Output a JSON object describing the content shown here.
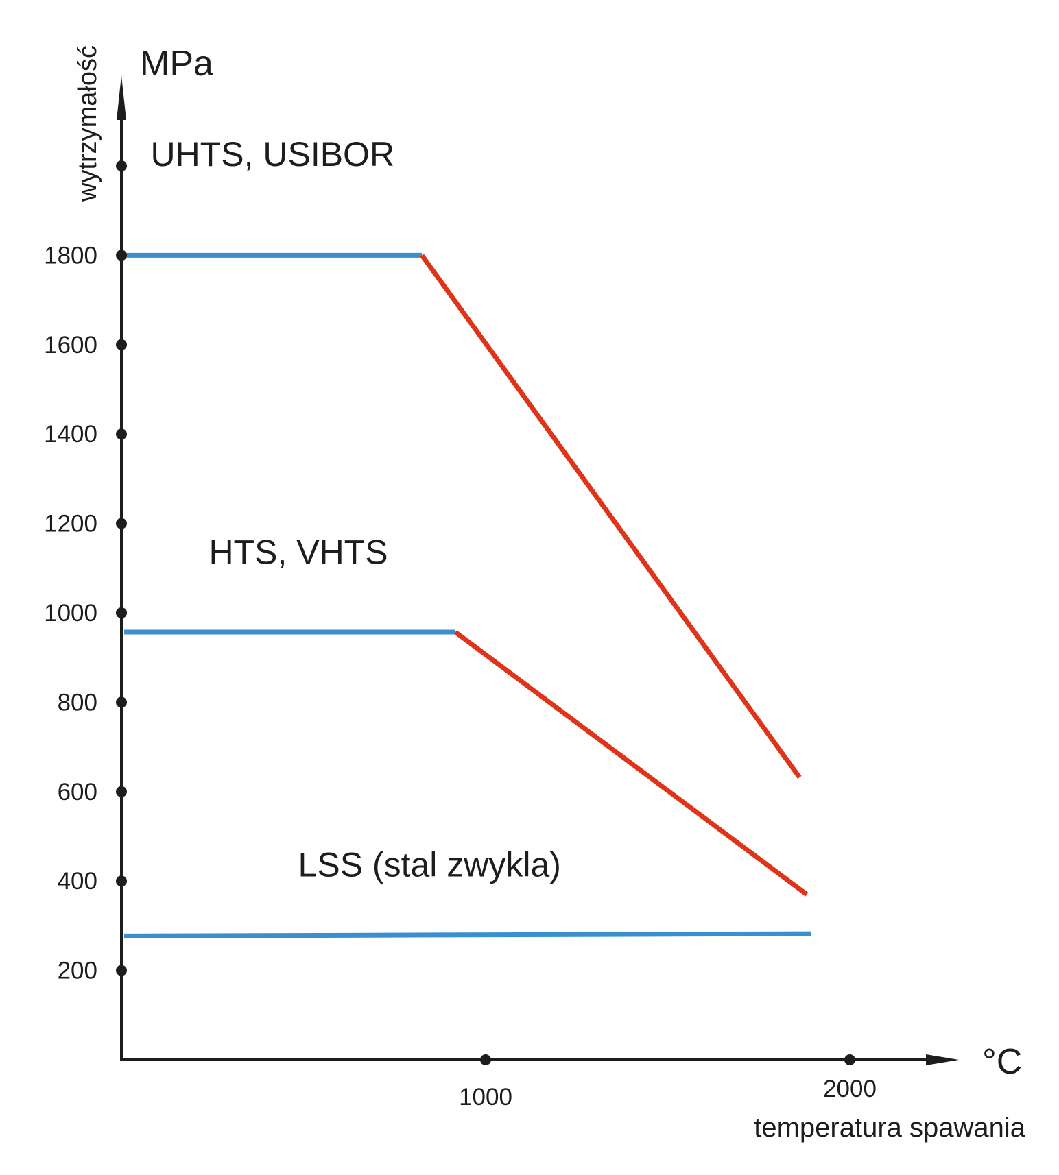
{
  "chart_data": {
    "type": "line",
    "title": "",
    "ylabel": "wytrzymałość",
    "yunit": "MPa",
    "xlabel": "temperatura spawania",
    "xunit": "°C",
    "xlim": [
      0,
      2250
    ],
    "ylim": [
      0,
      2150
    ],
    "y_ticks": [
      200,
      400,
      600,
      800,
      1000,
      1200,
      1400,
      1600,
      1800,
      2000
    ],
    "y_tick_labels": [
      "200",
      "400",
      "600",
      "800",
      "1000",
      "1200",
      "1400",
      "1600",
      "1800",
      ""
    ],
    "x_ticks": [
      1000,
      2000
    ],
    "x_tick_labels": [
      "1000",
      "2000"
    ],
    "grid": false,
    "colors": {
      "plateau": "#3a8fd0",
      "decline": "#e0341a",
      "axis": "#1d1d1b"
    },
    "series": [
      {
        "name": "UHTS, USIBOR",
        "plateau": [
          [
            0,
            1800
          ],
          [
            825,
            1800
          ]
        ],
        "decline": [
          [
            825,
            1800
          ],
          [
            1862,
            632
          ]
        ]
      },
      {
        "name": "HTS, VHTS",
        "plateau": [
          [
            0,
            957
          ],
          [
            917,
            957
          ]
        ],
        "decline": [
          [
            917,
            957
          ],
          [
            1882,
            370
          ]
        ]
      },
      {
        "name": "LSS (stal zwykla)",
        "plateau": [
          [
            0,
            277
          ],
          [
            1894,
            282
          ]
        ],
        "decline": []
      }
    ],
    "annotations": [
      {
        "text": "UHTS, USIBOR",
        "at": [
          80,
          2000
        ]
      },
      {
        "text": "HTS, VHTS",
        "at": [
          240,
          1110
        ]
      },
      {
        "text": "LSS (stal zwykla)",
        "at": [
          485,
          410
        ]
      }
    ]
  }
}
